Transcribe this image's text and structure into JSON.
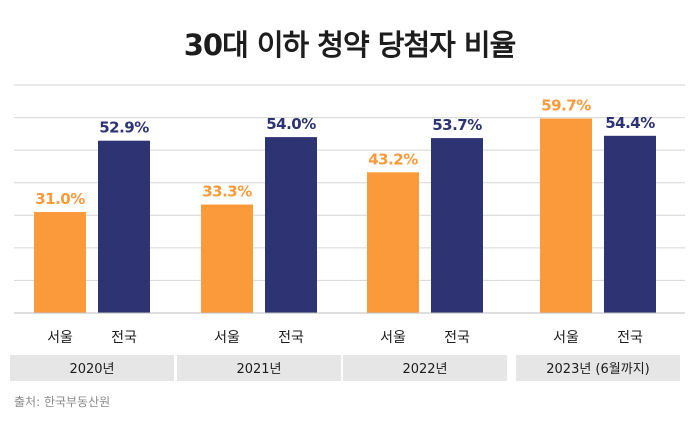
{
  "chart_data": {
    "type": "bar",
    "title": "30대 이하 청약 당첨자 비율",
    "categories": [
      "2020년",
      "2021년",
      "2022년",
      "2023년 (6월까지)"
    ],
    "series": [
      {
        "name": "서울",
        "values": [
          31.0,
          33.3,
          43.2,
          59.7
        ],
        "labels": [
          "31.0%",
          "33.3%",
          "43.2%",
          "59.7%"
        ],
        "color": "#fb9a3a"
      },
      {
        "name": "전국",
        "values": [
          52.9,
          54.0,
          53.7,
          54.4
        ],
        "labels": [
          "52.9%",
          "54.0%",
          "53.7%",
          "54.4%"
        ],
        "color": "#2e3373"
      }
    ],
    "bar_labels": [
      "서울",
      "전국"
    ],
    "ylim": [
      0,
      70
    ],
    "grid": true,
    "legend": "none",
    "source": "출처: 한국부동산원",
    "colors": {
      "seoul": "#fb9a3a",
      "national": "#2e3373",
      "grid": "#d5d5d5",
      "year_box": "#e6e6e6"
    }
  }
}
